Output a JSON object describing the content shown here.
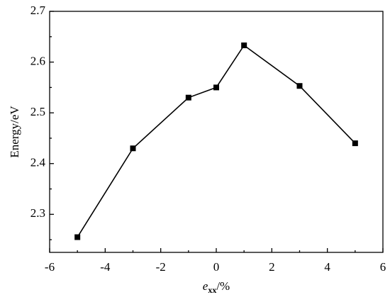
{
  "chart_data": {
    "type": "line",
    "x_label": {
      "symbol": "e",
      "subscript": "xx",
      "unit": "/%"
    },
    "y_label": "Energy/eV",
    "x": [
      -5,
      -3,
      -1,
      0,
      1,
      3,
      5
    ],
    "series": [
      {
        "color": "#000000",
        "values": [
          2.255,
          2.43,
          2.53,
          2.55,
          2.633,
          2.553,
          2.44
        ]
      }
    ],
    "marker": "square",
    "xlim": [
      -6,
      6
    ],
    "xticks": [
      -6,
      -4,
      -2,
      0,
      2,
      4,
      6
    ],
    "ylim": [
      2.225,
      2.7
    ],
    "yticks": [
      2.3,
      2.4,
      2.5,
      2.6,
      2.7
    ],
    "grid": false
  }
}
